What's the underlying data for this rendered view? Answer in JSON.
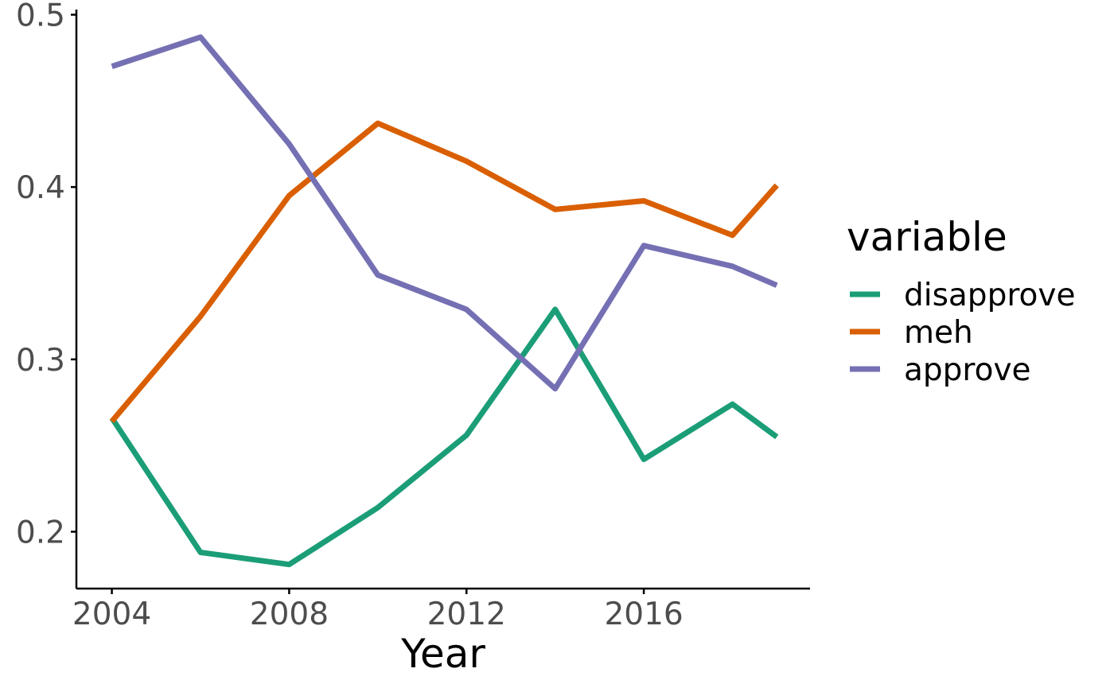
{
  "chart_data": {
    "type": "line",
    "title": "",
    "xlabel": "Year",
    "ylabel": "",
    "x": [
      2004,
      2006,
      2008,
      2010,
      2012,
      2014,
      2016,
      2018,
      2019
    ],
    "xticks": [
      2004,
      2008,
      2012,
      2016
    ],
    "xtick_labels": [
      "2004",
      "2008",
      "2012",
      "2016"
    ],
    "yticks": [
      0.2,
      0.3,
      0.4,
      0.5
    ],
    "ytick_labels": [
      "0.2",
      "0.3",
      "0.4",
      "0.5"
    ],
    "xlim": [
      2003.2,
      2019.75
    ],
    "ylim": [
      0.167,
      0.503
    ],
    "grid": false,
    "legend": {
      "title": "variable",
      "position": "right"
    },
    "series": [
      {
        "name": "disapprove",
        "color": "#1b9e77",
        "values": [
          0.266,
          0.188,
          0.181,
          0.214,
          0.256,
          0.329,
          0.242,
          0.274,
          0.255
        ]
      },
      {
        "name": "meh",
        "color": "#d95f02",
        "values": [
          0.264,
          0.325,
          0.395,
          0.437,
          0.415,
          0.387,
          0.392,
          0.372,
          0.401
        ]
      },
      {
        "name": "approve",
        "color": "#7570b3",
        "values": [
          0.47,
          0.487,
          0.425,
          0.349,
          0.329,
          0.283,
          0.366,
          0.354,
          0.343
        ]
      }
    ]
  }
}
